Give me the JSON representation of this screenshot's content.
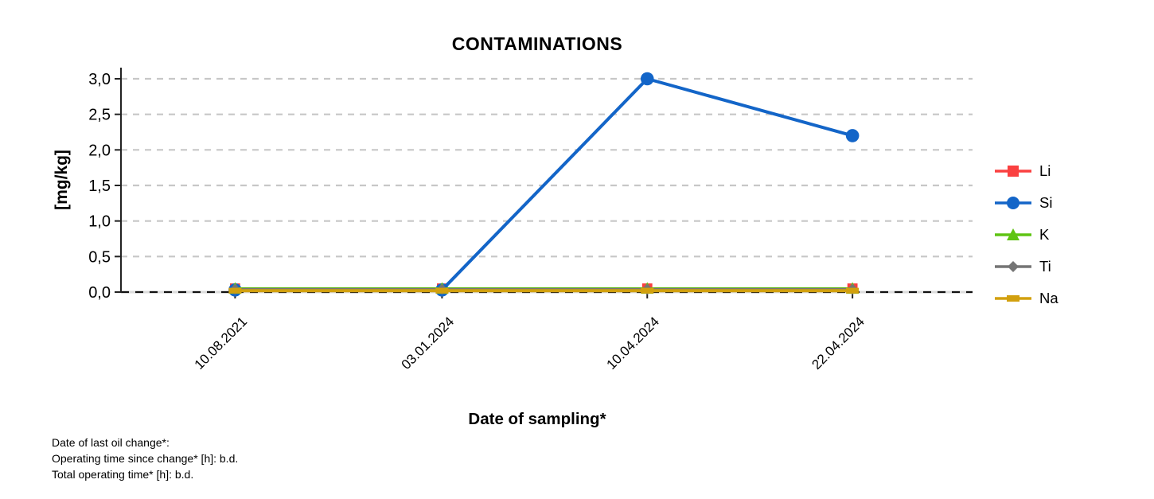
{
  "chart_data": {
    "type": "line",
    "title": "CONTAMINATIONS",
    "xlabel": "Date of sampling*",
    "ylabel": "[mg/kg]",
    "categories": [
      "10.08.2021",
      "03.01.2024",
      "10.04.2024",
      "22.04.2024"
    ],
    "series": [
      {
        "name": "Li",
        "color": "#FA4040",
        "marker": "square",
        "values": [
          0.05,
          0.05,
          0.05,
          0.05
        ]
      },
      {
        "name": "Si",
        "color": "#1365C8",
        "marker": "circle",
        "values": [
          0.03,
          0.03,
          3.0,
          2.2
        ]
      },
      {
        "name": "K",
        "color": "#5FC413",
        "marker": "triangle",
        "values": [
          0.05,
          0.05,
          0.05,
          0.05
        ]
      },
      {
        "name": "Ti",
        "color": "#757575",
        "marker": "diamond",
        "values": [
          0.04,
          0.04,
          0.04,
          0.04
        ]
      },
      {
        "name": "Na",
        "color": "#D2A00E",
        "marker": "bar",
        "values": [
          0.02,
          0.02,
          0.02,
          0.02
        ]
      }
    ],
    "ylim": [
      0,
      3
    ],
    "ytick_step": 0.5,
    "ytick_labels": [
      "0,0",
      "0,5",
      "1,0",
      "1,5",
      "2,0",
      "2,5",
      "3,0"
    ],
    "grid": "horizontal-dashed",
    "legend_position": "right",
    "colors": {
      "gridline": "#C7C7C7",
      "zero_line_base": "#DCDCDC",
      "zero_line_dash": "#111111",
      "axis": "#222222",
      "text": "#000000"
    }
  },
  "footer": {
    "lines": [
      "Date of last oil change*:",
      "Operating time since change* [h]: b.d.",
      "Total operating time* [h]: b.d."
    ]
  }
}
